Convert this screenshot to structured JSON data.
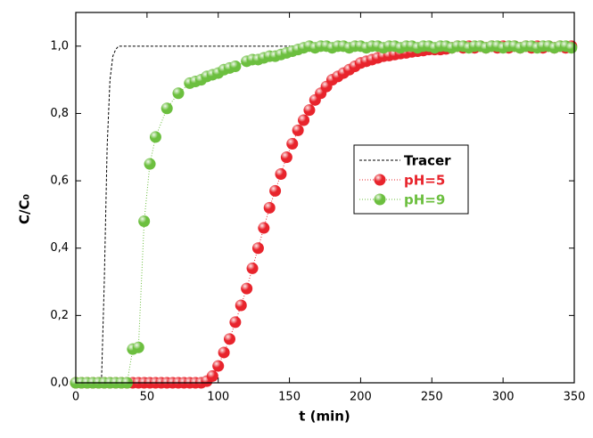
{
  "chart_data": {
    "type": "line",
    "xlabel": "t (min)",
    "ylabel": "C/C₀",
    "xlim": [
      0,
      350
    ],
    "ylim": [
      0,
      1.1
    ],
    "xticks": [
      0,
      50,
      100,
      150,
      200,
      250,
      300,
      350
    ],
    "yticks": [
      {
        "value": 0,
        "label": "0,0"
      },
      {
        "value": 0.2,
        "label": "0,2"
      },
      {
        "value": 0.4,
        "label": "0,4"
      },
      {
        "value": 0.6,
        "label": "0,6"
      },
      {
        "value": 0.8,
        "label": "0,8"
      },
      {
        "value": 1.0,
        "label": "1,0"
      }
    ],
    "series": [
      {
        "name": "Tracer",
        "color": "#000000",
        "line": "dashed",
        "markers": false,
        "x": [
          0,
          18,
          20,
          22,
          24,
          26,
          28,
          30,
          35,
          350
        ],
        "values": [
          0,
          0,
          0.3,
          0.7,
          0.9,
          0.97,
          0.99,
          1,
          1,
          1
        ]
      },
      {
        "name": "pH=5",
        "color": "#e8242c",
        "line": "dotted",
        "markers": true,
        "x": [
          0,
          4,
          8,
          12,
          16,
          20,
          24,
          28,
          32,
          36,
          40,
          44,
          48,
          52,
          56,
          60,
          64,
          68,
          72,
          76,
          80,
          84,
          88,
          92,
          96,
          100,
          104,
          108,
          112,
          116,
          120,
          124,
          128,
          132,
          136,
          140,
          144,
          148,
          152,
          156,
          160,
          164,
          168,
          172,
          176,
          180,
          184,
          188,
          192,
          196,
          200,
          204,
          208,
          212,
          216,
          220,
          224,
          228,
          232,
          236,
          240,
          244,
          248,
          252,
          256,
          260,
          264,
          268,
          272,
          276,
          280,
          284,
          288,
          292,
          296,
          300,
          304,
          308,
          312,
          316,
          320,
          324,
          328,
          332,
          336,
          340,
          344,
          348
        ],
        "values": [
          0,
          0,
          0,
          0,
          0,
          0,
          0,
          0,
          0,
          0,
          0,
          0,
          0,
          0,
          0,
          0,
          0,
          0,
          0,
          0,
          0,
          0,
          0,
          0.005,
          0.02,
          0.05,
          0.09,
          0.13,
          0.18,
          0.23,
          0.28,
          0.34,
          0.4,
          0.46,
          0.52,
          0.57,
          0.62,
          0.67,
          0.71,
          0.75,
          0.78,
          0.81,
          0.84,
          0.86,
          0.88,
          0.9,
          0.91,
          0.92,
          0.93,
          0.94,
          0.95,
          0.955,
          0.96,
          0.965,
          0.97,
          0.972,
          0.975,
          0.978,
          0.98,
          0.983,
          0.985,
          0.987,
          0.99,
          0.99,
          0.99,
          0.992,
          0.995,
          1,
          0.995,
          1,
          0.995,
          1,
          0.995,
          1,
          0.995,
          1,
          0.995,
          1,
          0.995,
          1,
          0.995,
          1,
          0.995,
          1,
          0.995,
          1,
          0.995,
          1
        ]
      },
      {
        "name": "pH=9",
        "color": "#6cbf3f",
        "line": "dotted",
        "markers": true,
        "x": [
          0,
          4,
          8,
          12,
          16,
          20,
          24,
          28,
          32,
          36,
          40,
          44,
          48,
          52,
          56,
          64,
          72,
          80,
          84,
          88,
          92,
          96,
          100,
          104,
          108,
          112,
          120,
          124,
          128,
          132,
          136,
          140,
          144,
          148,
          152,
          156,
          160,
          164,
          168,
          172,
          176,
          180,
          184,
          188,
          192,
          196,
          200,
          204,
          208,
          212,
          216,
          220,
          224,
          228,
          232,
          236,
          240,
          244,
          248,
          252,
          256,
          260,
          264,
          268,
          272,
          276,
          280,
          284,
          288,
          292,
          296,
          300,
          304,
          308,
          312,
          316,
          320,
          324,
          328,
          332,
          336,
          340,
          344,
          348
        ],
        "values": [
          0,
          0,
          0,
          0,
          0,
          0,
          0,
          0,
          0,
          0,
          0.1,
          0.105,
          0.48,
          0.65,
          0.73,
          0.815,
          0.86,
          0.89,
          0.895,
          0.9,
          0.91,
          0.915,
          0.92,
          0.93,
          0.935,
          0.94,
          0.955,
          0.96,
          0.96,
          0.965,
          0.97,
          0.97,
          0.975,
          0.98,
          0.985,
          0.99,
          0.995,
          1,
          0.995,
          1,
          1,
          0.995,
          1,
          1,
          0.995,
          1,
          1,
          0.995,
          1,
          1,
          0.995,
          1,
          1,
          0.995,
          1,
          1,
          0.995,
          1,
          1,
          0.995,
          1,
          1,
          0.995,
          1,
          1,
          0.995,
          1,
          1,
          0.995,
          1,
          1,
          0.995,
          1,
          1,
          0.995,
          1,
          1,
          0.995,
          1,
          1,
          0.995,
          1,
          1,
          0.995
        ]
      }
    ]
  }
}
